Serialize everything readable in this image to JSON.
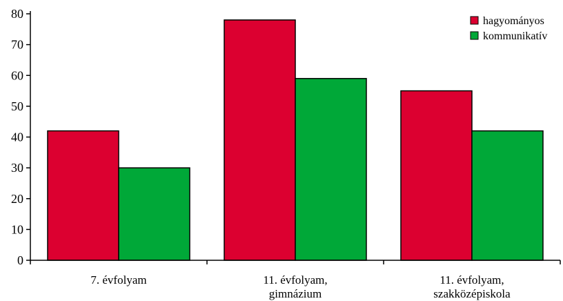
{
  "chart_data": {
    "type": "bar",
    "categories": [
      [
        "7. évfolyam"
      ],
      [
        "11. évfolyam,",
        "gimnázium"
      ],
      [
        "11. évfolyam,",
        "szakközépiskola"
      ]
    ],
    "series": [
      {
        "name": "hagyományos",
        "values": [
          42,
          78,
          55
        ],
        "color": "#dc0030"
      },
      {
        "name": "kommunikatív",
        "values": [
          30,
          59,
          42
        ],
        "color": "#00a838"
      }
    ],
    "ylim": [
      0,
      80
    ],
    "yticks": [
      0,
      10,
      20,
      30,
      40,
      50,
      60,
      70,
      80
    ],
    "grid": false,
    "legend_position": "top-right"
  }
}
